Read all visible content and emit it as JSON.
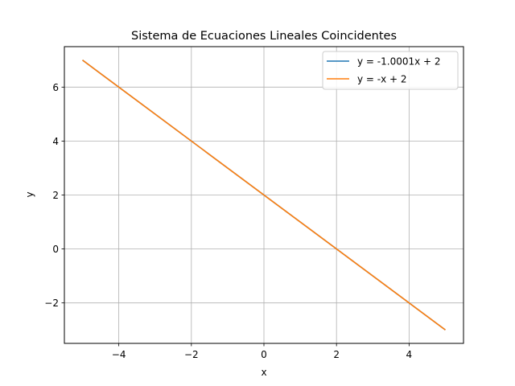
{
  "chart_data": {
    "type": "line",
    "title": "Sistema de Ecuaciones Lineales Coincidentes",
    "xlabel": "x",
    "ylabel": "y",
    "xlim": [
      -5.5,
      5.5
    ],
    "ylim": [
      -3.5,
      7.5
    ],
    "xticks": [
      -4,
      -2,
      0,
      2,
      4
    ],
    "yticks": [
      -2,
      0,
      2,
      4,
      6
    ],
    "xtick_labels": [
      "−4",
      "−2",
      "0",
      "2",
      "4"
    ],
    "ytick_labels": [
      "−2",
      "0",
      "2",
      "4",
      "6"
    ],
    "grid": true,
    "legend_position": "top-right",
    "series": [
      {
        "name": "y = -1.0001x + 2",
        "color": "#1f77b4",
        "x": [
          -5,
          5
        ],
        "y": [
          7.0005,
          -3.0005
        ]
      },
      {
        "name": "y = -x + 2",
        "color": "#ff7f0e",
        "x": [
          -5,
          5
        ],
        "y": [
          7,
          -3
        ]
      }
    ]
  }
}
